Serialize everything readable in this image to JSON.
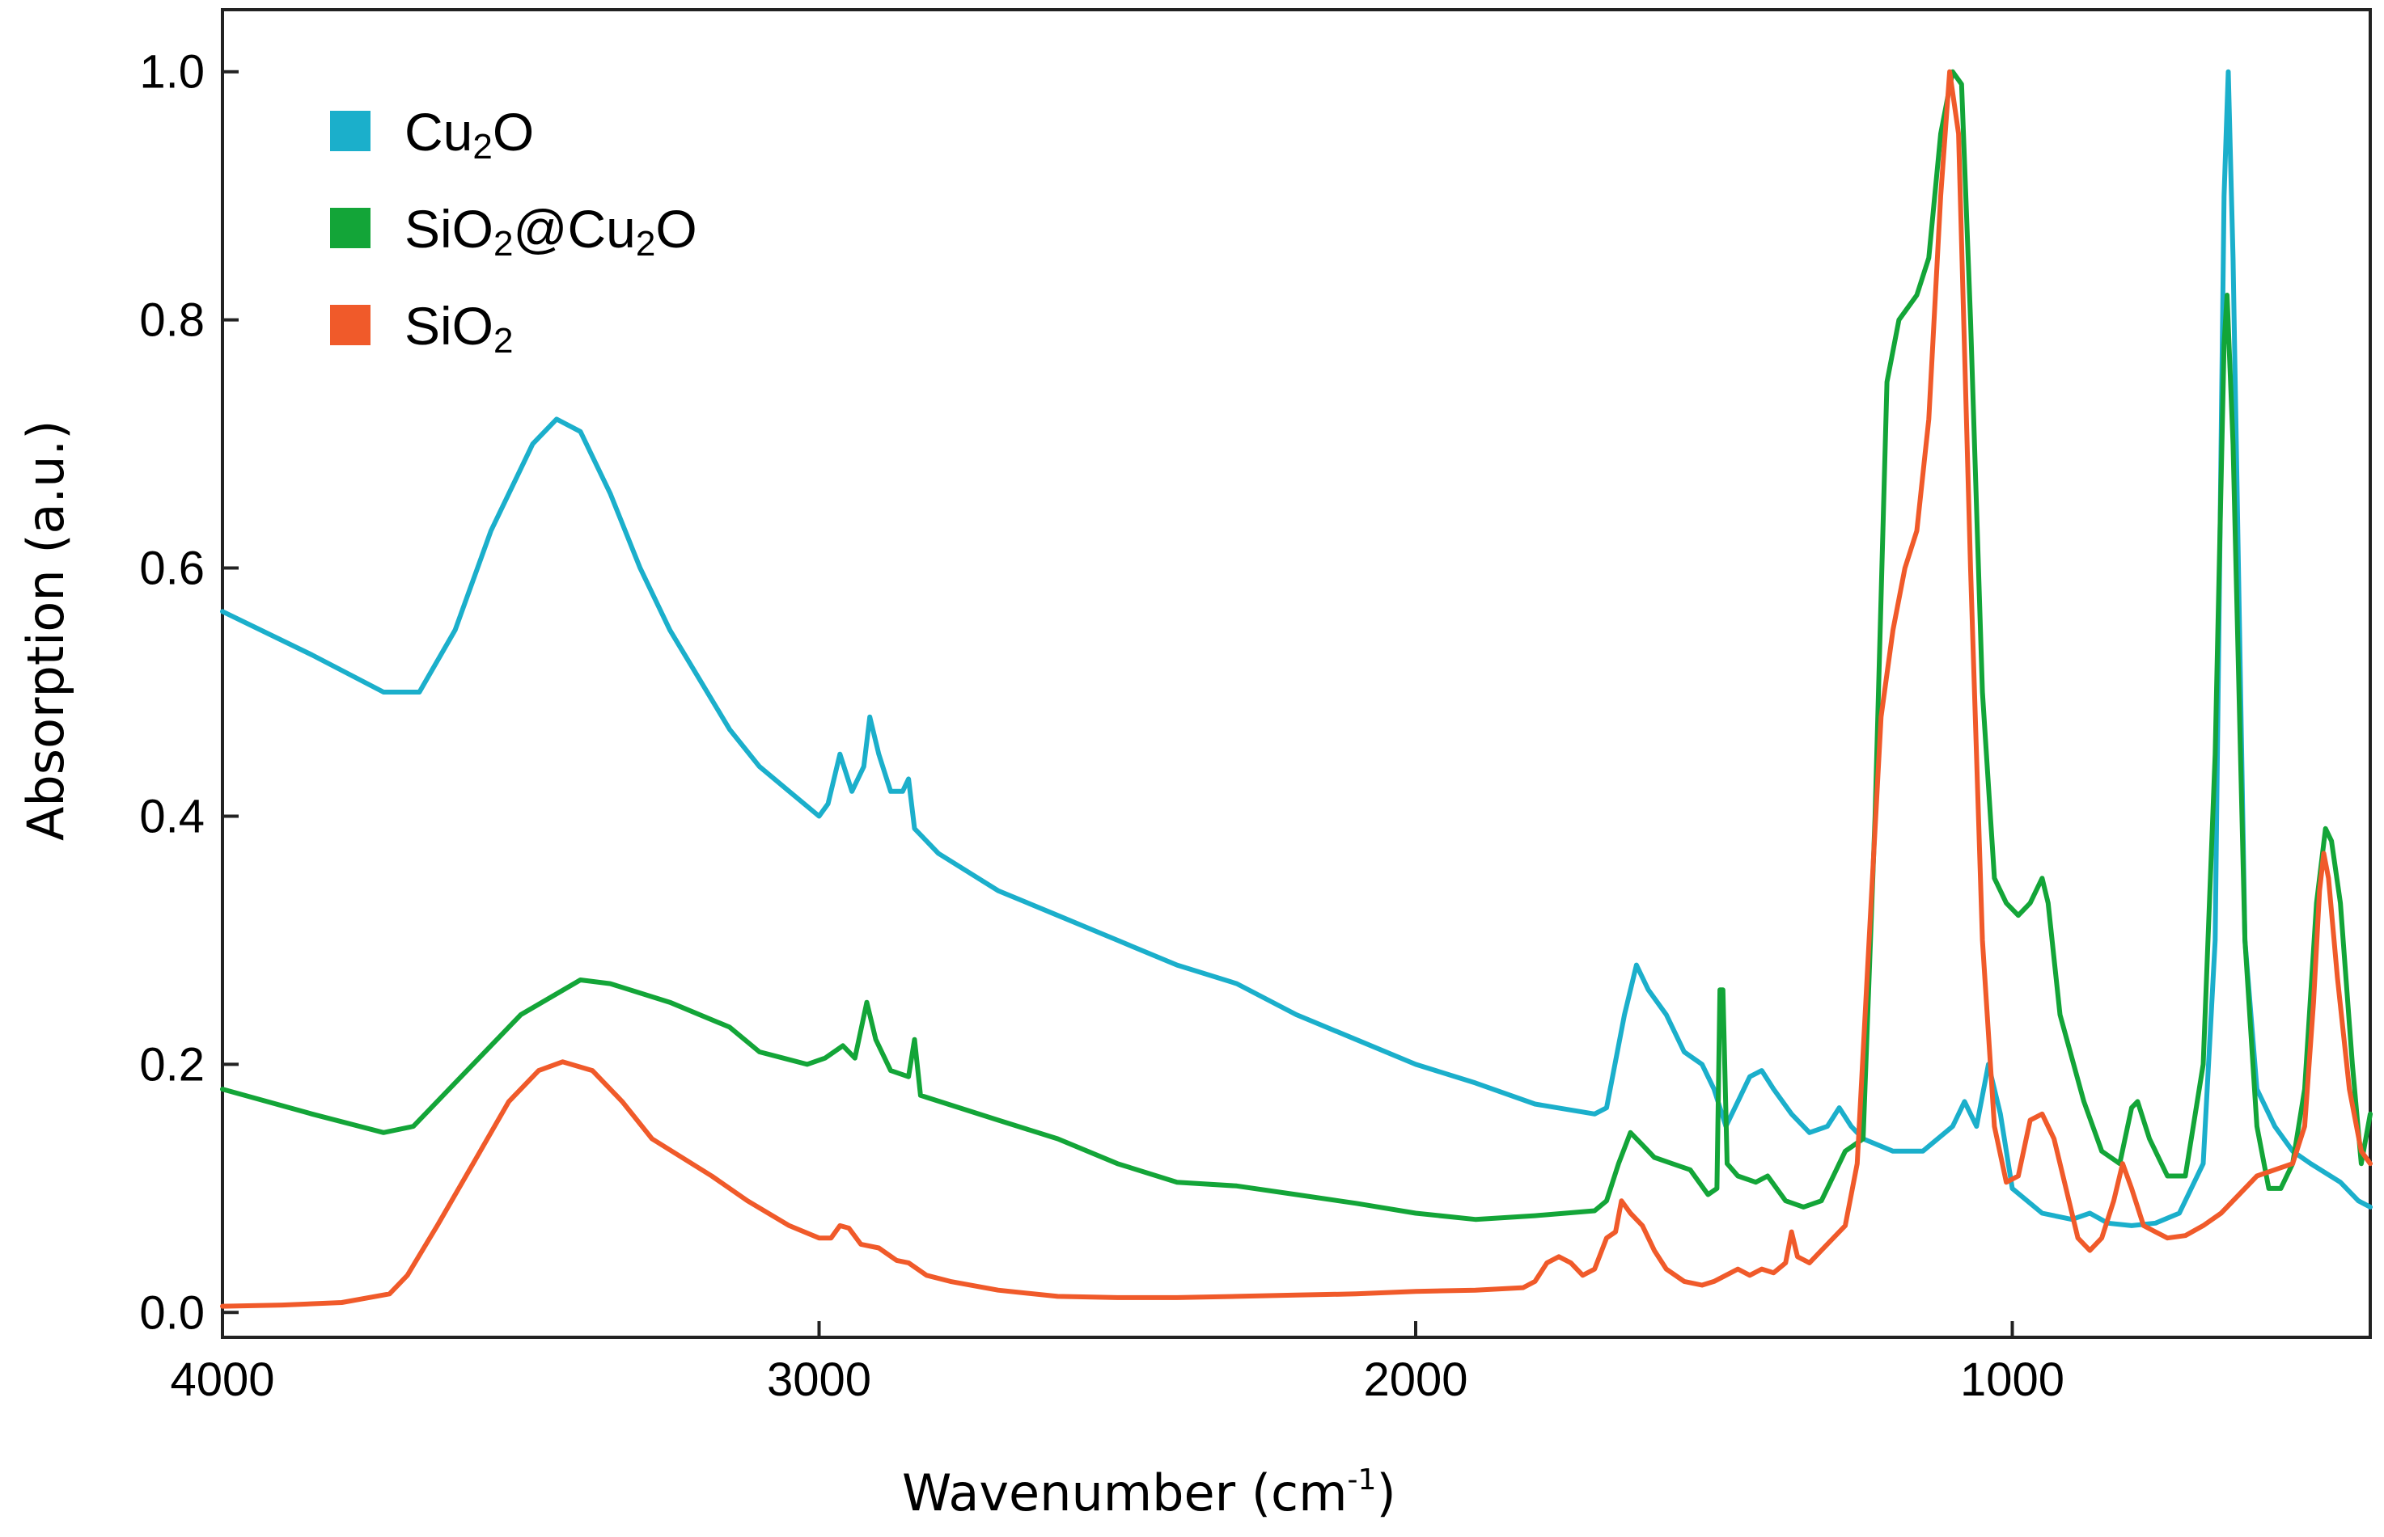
{
  "chart_data": {
    "type": "line",
    "title": "",
    "xlabel": "Wavenumber (cm",
    "xlabel_sup": "-1",
    "xlabel_close": ")",
    "ylabel": "Absorption (a.u.)",
    "xlim": [
      4000,
      400
    ],
    "ylim": [
      -0.02,
      1.05
    ],
    "xticks": [
      {
        "value": 4000,
        "label": "4000"
      },
      {
        "value": 3000,
        "label": "3000"
      },
      {
        "value": 2000,
        "label": "2000"
      },
      {
        "value": 1000,
        "label": "1000"
      }
    ],
    "yticks": [
      {
        "value": 0.0,
        "label": "0.0"
      },
      {
        "value": 0.2,
        "label": "0.2"
      },
      {
        "value": 0.4,
        "label": "0.4"
      },
      {
        "value": 0.6,
        "label": "0.6"
      },
      {
        "value": 0.8,
        "label": "0.8"
      },
      {
        "value": 1.0,
        "label": "1.0"
      }
    ],
    "legend_position": "top-left",
    "grid": false,
    "series": [
      {
        "name": "Cu2O",
        "label_parts": [
          {
            "t": "Cu"
          },
          {
            "t": "2",
            "sub": true
          },
          {
            "t": "O"
          }
        ],
        "color": "#1BAFCB",
        "points": [
          [
            4000,
            0.565
          ],
          [
            3850,
            0.53
          ],
          [
            3730,
            0.5
          ],
          [
            3670,
            0.5
          ],
          [
            3610,
            0.55
          ],
          [
            3550,
            0.63
          ],
          [
            3480,
            0.7
          ],
          [
            3440,
            0.72
          ],
          [
            3400,
            0.71
          ],
          [
            3350,
            0.66
          ],
          [
            3300,
            0.6
          ],
          [
            3250,
            0.55
          ],
          [
            3200,
            0.51
          ],
          [
            3150,
            0.47
          ],
          [
            3100,
            0.44
          ],
          [
            3050,
            0.42
          ],
          [
            3000,
            0.4
          ],
          [
            2985,
            0.41
          ],
          [
            2965,
            0.45
          ],
          [
            2945,
            0.42
          ],
          [
            2925,
            0.44
          ],
          [
            2915,
            0.48
          ],
          [
            2900,
            0.45
          ],
          [
            2880,
            0.42
          ],
          [
            2860,
            0.42
          ],
          [
            2850,
            0.43
          ],
          [
            2840,
            0.39
          ],
          [
            2800,
            0.37
          ],
          [
            2700,
            0.34
          ],
          [
            2600,
            0.32
          ],
          [
            2500,
            0.3
          ],
          [
            2400,
            0.28
          ],
          [
            2300,
            0.265
          ],
          [
            2200,
            0.24
          ],
          [
            2100,
            0.22
          ],
          [
            2000,
            0.2
          ],
          [
            1900,
            0.185
          ],
          [
            1800,
            0.168
          ],
          [
            1700,
            0.16
          ],
          [
            1680,
            0.165
          ],
          [
            1650,
            0.24
          ],
          [
            1630,
            0.28
          ],
          [
            1610,
            0.26
          ],
          [
            1580,
            0.24
          ],
          [
            1550,
            0.21
          ],
          [
            1520,
            0.2
          ],
          [
            1500,
            0.18
          ],
          [
            1480,
            0.15
          ],
          [
            1460,
            0.17
          ],
          [
            1440,
            0.19
          ],
          [
            1420,
            0.195
          ],
          [
            1400,
            0.18
          ],
          [
            1370,
            0.16
          ],
          [
            1340,
            0.145
          ],
          [
            1310,
            0.15
          ],
          [
            1290,
            0.165
          ],
          [
            1270,
            0.15
          ],
          [
            1250,
            0.14
          ],
          [
            1200,
            0.13
          ],
          [
            1150,
            0.13
          ],
          [
            1100,
            0.15
          ],
          [
            1080,
            0.17
          ],
          [
            1060,
            0.15
          ],
          [
            1040,
            0.2
          ],
          [
            1020,
            0.16
          ],
          [
            1000,
            0.1
          ],
          [
            950,
            0.08
          ],
          [
            900,
            0.075
          ],
          [
            870,
            0.08
          ],
          [
            840,
            0.072
          ],
          [
            800,
            0.07
          ],
          [
            760,
            0.072
          ],
          [
            720,
            0.08
          ],
          [
            680,
            0.12
          ],
          [
            660,
            0.3
          ],
          [
            645,
            0.9
          ],
          [
            638,
            1.0
          ],
          [
            630,
            0.85
          ],
          [
            610,
            0.3
          ],
          [
            590,
            0.18
          ],
          [
            560,
            0.15
          ],
          [
            530,
            0.13
          ],
          [
            500,
            0.12
          ],
          [
            450,
            0.105
          ],
          [
            420,
            0.09
          ],
          [
            400,
            0.085
          ]
        ]
      },
      {
        "name": "SiO2@Cu2O",
        "label_parts": [
          {
            "t": "SiO"
          },
          {
            "t": "2",
            "sub": true
          },
          {
            "t": "@Cu"
          },
          {
            "t": "2",
            "sub": true
          },
          {
            "t": "O"
          }
        ],
        "color": "#13A538",
        "points": [
          [
            4000,
            0.18
          ],
          [
            3850,
            0.16
          ],
          [
            3730,
            0.145
          ],
          [
            3680,
            0.15
          ],
          [
            3600,
            0.19
          ],
          [
            3500,
            0.24
          ],
          [
            3400,
            0.268
          ],
          [
            3350,
            0.265
          ],
          [
            3250,
            0.25
          ],
          [
            3150,
            0.23
          ],
          [
            3100,
            0.21
          ],
          [
            3060,
            0.205
          ],
          [
            3020,
            0.2
          ],
          [
            2990,
            0.205
          ],
          [
            2960,
            0.215
          ],
          [
            2940,
            0.205
          ],
          [
            2920,
            0.25
          ],
          [
            2905,
            0.22
          ],
          [
            2880,
            0.195
          ],
          [
            2850,
            0.19
          ],
          [
            2840,
            0.22
          ],
          [
            2830,
            0.175
          ],
          [
            2700,
            0.155
          ],
          [
            2600,
            0.14
          ],
          [
            2500,
            0.12
          ],
          [
            2400,
            0.105
          ],
          [
            2300,
            0.102
          ],
          [
            2200,
            0.095
          ],
          [
            2100,
            0.088
          ],
          [
            2000,
            0.08
          ],
          [
            1900,
            0.075
          ],
          [
            1800,
            0.078
          ],
          [
            1700,
            0.082
          ],
          [
            1680,
            0.09
          ],
          [
            1660,
            0.12
          ],
          [
            1640,
            0.145
          ],
          [
            1620,
            0.135
          ],
          [
            1600,
            0.125
          ],
          [
            1570,
            0.12
          ],
          [
            1540,
            0.115
          ],
          [
            1510,
            0.095
          ],
          [
            1495,
            0.1
          ],
          [
            1490,
            0.26
          ],
          [
            1485,
            0.26
          ],
          [
            1478,
            0.12
          ],
          [
            1460,
            0.11
          ],
          [
            1430,
            0.105
          ],
          [
            1410,
            0.11
          ],
          [
            1380,
            0.09
          ],
          [
            1350,
            0.085
          ],
          [
            1320,
            0.09
          ],
          [
            1300,
            0.11
          ],
          [
            1280,
            0.13
          ],
          [
            1250,
            0.14
          ],
          [
            1230,
            0.4
          ],
          [
            1210,
            0.75
          ],
          [
            1190,
            0.8
          ],
          [
            1160,
            0.82
          ],
          [
            1140,
            0.85
          ],
          [
            1120,
            0.95
          ],
          [
            1100,
            1.0
          ],
          [
            1085,
            0.99
          ],
          [
            1070,
            0.8
          ],
          [
            1050,
            0.5
          ],
          [
            1030,
            0.35
          ],
          [
            1010,
            0.33
          ],
          [
            990,
            0.32
          ],
          [
            970,
            0.33
          ],
          [
            950,
            0.35
          ],
          [
            940,
            0.33
          ],
          [
            920,
            0.24
          ],
          [
            880,
            0.17
          ],
          [
            850,
            0.13
          ],
          [
            820,
            0.12
          ],
          [
            800,
            0.165
          ],
          [
            790,
            0.17
          ],
          [
            770,
            0.14
          ],
          [
            740,
            0.11
          ],
          [
            710,
            0.11
          ],
          [
            680,
            0.2
          ],
          [
            660,
            0.45
          ],
          [
            645,
            0.78
          ],
          [
            640,
            0.82
          ],
          [
            630,
            0.7
          ],
          [
            610,
            0.3
          ],
          [
            590,
            0.15
          ],
          [
            570,
            0.1
          ],
          [
            550,
            0.1
          ],
          [
            530,
            0.12
          ],
          [
            510,
            0.18
          ],
          [
            490,
            0.33
          ],
          [
            475,
            0.39
          ],
          [
            465,
            0.38
          ],
          [
            450,
            0.33
          ],
          [
            430,
            0.2
          ],
          [
            415,
            0.12
          ],
          [
            400,
            0.16
          ]
        ]
      },
      {
        "name": "SiO2",
        "label_parts": [
          {
            "t": "SiO"
          },
          {
            "t": "2",
            "sub": true
          }
        ],
        "color": "#F05A2A",
        "points": [
          [
            4000,
            0.005
          ],
          [
            3900,
            0.006
          ],
          [
            3800,
            0.008
          ],
          [
            3720,
            0.015
          ],
          [
            3690,
            0.03
          ],
          [
            3640,
            0.07
          ],
          [
            3580,
            0.12
          ],
          [
            3520,
            0.17
          ],
          [
            3470,
            0.195
          ],
          [
            3430,
            0.202
          ],
          [
            3380,
            0.195
          ],
          [
            3330,
            0.17
          ],
          [
            3280,
            0.14
          ],
          [
            3230,
            0.125
          ],
          [
            3180,
            0.11
          ],
          [
            3120,
            0.09
          ],
          [
            3050,
            0.07
          ],
          [
            3000,
            0.06
          ],
          [
            2980,
            0.06
          ],
          [
            2965,
            0.07
          ],
          [
            2950,
            0.068
          ],
          [
            2930,
            0.055
          ],
          [
            2900,
            0.052
          ],
          [
            2870,
            0.042
          ],
          [
            2850,
            0.04
          ],
          [
            2820,
            0.03
          ],
          [
            2780,
            0.025
          ],
          [
            2700,
            0.018
          ],
          [
            2600,
            0.013
          ],
          [
            2500,
            0.012
          ],
          [
            2400,
            0.012
          ],
          [
            2300,
            0.013
          ],
          [
            2200,
            0.014
          ],
          [
            2100,
            0.015
          ],
          [
            2000,
            0.017
          ],
          [
            1900,
            0.018
          ],
          [
            1820,
            0.02
          ],
          [
            1800,
            0.025
          ],
          [
            1780,
            0.04
          ],
          [
            1760,
            0.045
          ],
          [
            1740,
            0.04
          ],
          [
            1720,
            0.03
          ],
          [
            1700,
            0.035
          ],
          [
            1680,
            0.06
          ],
          [
            1665,
            0.065
          ],
          [
            1655,
            0.09
          ],
          [
            1640,
            0.08
          ],
          [
            1620,
            0.07
          ],
          [
            1600,
            0.05
          ],
          [
            1580,
            0.035
          ],
          [
            1550,
            0.025
          ],
          [
            1520,
            0.022
          ],
          [
            1500,
            0.025
          ],
          [
            1480,
            0.03
          ],
          [
            1460,
            0.035
          ],
          [
            1440,
            0.03
          ],
          [
            1420,
            0.035
          ],
          [
            1400,
            0.032
          ],
          [
            1380,
            0.04
          ],
          [
            1370,
            0.065
          ],
          [
            1360,
            0.045
          ],
          [
            1340,
            0.04
          ],
          [
            1320,
            0.05
          ],
          [
            1300,
            0.06
          ],
          [
            1280,
            0.07
          ],
          [
            1260,
            0.12
          ],
          [
            1240,
            0.3
          ],
          [
            1220,
            0.48
          ],
          [
            1200,
            0.55
          ],
          [
            1180,
            0.6
          ],
          [
            1160,
            0.63
          ],
          [
            1140,
            0.72
          ],
          [
            1120,
            0.9
          ],
          [
            1105,
            1.0
          ],
          [
            1090,
            0.95
          ],
          [
            1070,
            0.6
          ],
          [
            1050,
            0.3
          ],
          [
            1030,
            0.15
          ],
          [
            1010,
            0.105
          ],
          [
            990,
            0.11
          ],
          [
            970,
            0.155
          ],
          [
            950,
            0.16
          ],
          [
            930,
            0.14
          ],
          [
            910,
            0.1
          ],
          [
            890,
            0.06
          ],
          [
            870,
            0.05
          ],
          [
            850,
            0.06
          ],
          [
            830,
            0.09
          ],
          [
            815,
            0.12
          ],
          [
            800,
            0.1
          ],
          [
            780,
            0.07
          ],
          [
            760,
            0.065
          ],
          [
            740,
            0.06
          ],
          [
            710,
            0.062
          ],
          [
            680,
            0.07
          ],
          [
            650,
            0.08
          ],
          [
            620,
            0.095
          ],
          [
            590,
            0.11
          ],
          [
            560,
            0.115
          ],
          [
            530,
            0.12
          ],
          [
            510,
            0.15
          ],
          [
            495,
            0.25
          ],
          [
            485,
            0.34
          ],
          [
            478,
            0.37
          ],
          [
            470,
            0.35
          ],
          [
            455,
            0.27
          ],
          [
            435,
            0.18
          ],
          [
            415,
            0.13
          ],
          [
            400,
            0.12
          ]
        ]
      }
    ]
  }
}
